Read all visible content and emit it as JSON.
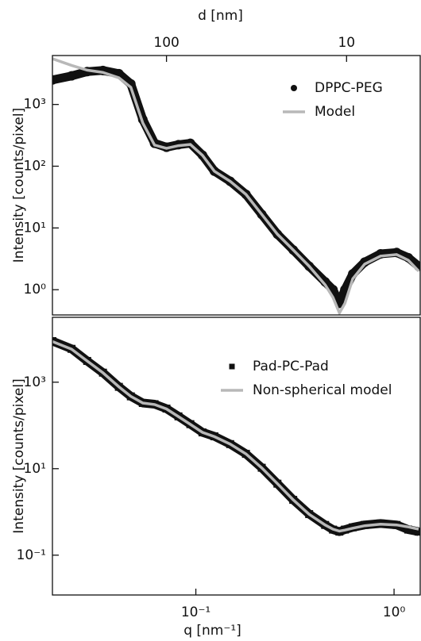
{
  "chart_data": [
    {
      "type": "scatter-line",
      "ylabel": "Intensity [counts/pixel]",
      "x2label": "d [nm]",
      "xscale": "log",
      "yscale": "log",
      "xlim": [
        0.0189,
        1.355
      ],
      "ylim": [
        0.39,
        6200
      ],
      "x2lim": [
        430,
        3.9
      ],
      "x2ticks": [
        100,
        10
      ],
      "yticks": [
        {
          "value": 1000,
          "label": "10³"
        },
        {
          "value": 100,
          "label": "10²"
        },
        {
          "value": 10,
          "label": "10¹"
        },
        {
          "value": 1,
          "label": "10⁰"
        }
      ],
      "x": [
        0.0189,
        0.0236,
        0.0283,
        0.034,
        0.0409,
        0.047,
        0.054,
        0.0619,
        0.0711,
        0.0817,
        0.0938,
        0.108,
        0.124,
        0.149,
        0.179,
        0.215,
        0.258,
        0.31,
        0.373,
        0.449,
        0.492,
        0.53,
        0.565,
        0.619,
        0.711,
        0.855,
        1.03,
        1.18,
        1.33
      ],
      "series": [
        {
          "name": "DPPC-PEG",
          "color": "#111111",
          "marker": "circle",
          "values": [
            2500,
            2900,
            3400,
            3550,
            3150,
            2150,
            570,
            235,
            203,
            223,
            235,
            151,
            83,
            57,
            35,
            16.6,
            7.9,
            4.4,
            2.4,
            1.34,
            1.0,
            0.6,
            1.0,
            1.8,
            2.8,
            3.8,
            4.0,
            3.3,
            2.4
          ]
        },
        {
          "name": "Model",
          "color": "#b8b8b8",
          "marker": "line",
          "values": [
            5500,
            4300,
            3600,
            3300,
            2700,
            1900,
            500,
            220,
            195,
            215,
            225,
            150,
            83,
            57,
            35,
            16.6,
            7.9,
            4.4,
            2.4,
            1.2,
            0.75,
            0.42,
            0.6,
            1.5,
            2.6,
            3.5,
            3.7,
            3.0,
            2.0
          ]
        }
      ]
    },
    {
      "type": "scatter-line",
      "ylabel": "Intensity [counts/pixel]",
      "xlabel": "q [nm⁻¹]",
      "xscale": "log",
      "yscale": "log",
      "xlim": [
        0.0189,
        1.355
      ],
      "ylim": [
        0.012,
        31600
      ],
      "xticks": [
        {
          "value": 0.1,
          "label": "10⁻¹"
        },
        {
          "value": 1,
          "label": "10⁰"
        }
      ],
      "yticks": [
        {
          "value": 1000,
          "label": "10³"
        },
        {
          "value": 10,
          "label": "10¹"
        },
        {
          "value": 0.1,
          "label": "10⁻¹"
        }
      ],
      "x": [
        0.0189,
        0.0236,
        0.0283,
        0.034,
        0.0409,
        0.047,
        0.054,
        0.0619,
        0.0711,
        0.0817,
        0.0938,
        0.108,
        0.124,
        0.149,
        0.179,
        0.215,
        0.258,
        0.31,
        0.373,
        0.449,
        0.492,
        0.53,
        0.565,
        0.619,
        0.711,
        0.855,
        1.03,
        1.18,
        1.33
      ],
      "series": [
        {
          "name": "Pad-PC-Pad",
          "color": "#111111",
          "marker": "square",
          "values": [
            8900,
            5900,
            3100,
            1660,
            780,
            470,
            330,
            310,
            245,
            162,
            107,
            69,
            56,
            37,
            22,
            10.5,
            4.5,
            1.9,
            0.89,
            0.5,
            0.39,
            0.35,
            0.39,
            0.44,
            0.5,
            0.54,
            0.5,
            0.39,
            0.35
          ]
        },
        {
          "name": "Non-spherical model",
          "color": "#b8b8b8",
          "marker": "line",
          "values": [
            8700,
            5800,
            3100,
            1650,
            780,
            470,
            330,
            305,
            240,
            160,
            106,
            69,
            55,
            37,
            22,
            10.4,
            4.5,
            1.9,
            0.88,
            0.5,
            0.4,
            0.36,
            0.38,
            0.42,
            0.48,
            0.52,
            0.5,
            0.45,
            0.4
          ]
        }
      ]
    }
  ]
}
